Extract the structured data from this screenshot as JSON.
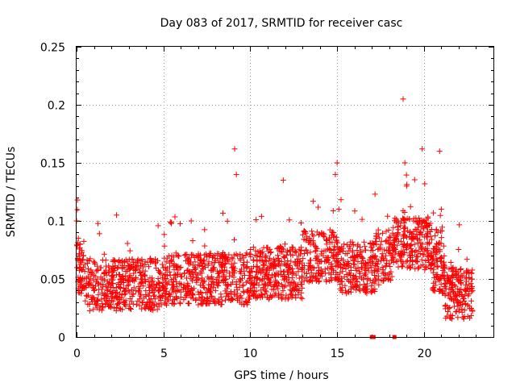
{
  "chart_data": {
    "type": "scatter",
    "title": "Day 083 of 2017, SRMTID for receiver casc",
    "xlabel": "GPS time / hours",
    "ylabel": "SRMTID / TECUs",
    "xlim": [
      0,
      24
    ],
    "ylim": [
      0,
      0.25
    ],
    "xticks": [
      0,
      5,
      10,
      15,
      20
    ],
    "xtick_labels": [
      "0",
      "5",
      "10",
      "15",
      "20"
    ],
    "yticks": [
      0,
      0.05,
      0.1,
      0.15,
      0.2,
      0.25
    ],
    "ytick_labels": [
      "0",
      "0.05",
      "0.1",
      "0.15",
      "0.2",
      "0.25"
    ],
    "grid": true,
    "marker": "+",
    "color": "#ff0000",
    "series": [
      {
        "name": "SRMTID",
        "x": [
          0.0,
          0.05,
          0.1,
          0.15,
          0.2,
          0.3,
          0.45,
          0.6,
          0.75,
          0.9,
          1.0,
          1.2,
          1.4,
          1.6,
          1.8,
          2.0,
          2.2,
          2.3,
          2.4,
          2.6,
          2.8,
          3.0,
          3.2,
          3.4,
          3.6,
          3.8,
          4.0,
          4.2,
          4.4,
          4.6,
          4.8,
          5.0,
          5.2,
          5.4,
          5.6,
          5.8,
          6.0,
          6.2,
          6.4,
          6.6,
          6.8,
          7.0,
          7.2,
          7.4,
          7.6,
          7.8,
          8.0,
          8.2,
          8.4,
          8.6,
          8.8,
          9.0,
          9.1,
          9.2,
          9.4,
          9.6,
          9.8,
          10.0,
          10.2,
          10.4,
          10.6,
          10.8,
          11.0,
          11.2,
          11.4,
          11.6,
          11.8,
          11.9,
          12.0,
          12.2,
          12.4,
          12.6,
          12.8,
          13.0,
          13.2,
          13.4,
          13.6,
          13.8,
          14.0,
          14.2,
          14.4,
          14.6,
          14.8,
          14.9,
          15.0,
          15.1,
          15.2,
          15.4,
          15.6,
          15.8,
          16.0,
          16.2,
          16.4,
          16.6,
          16.8,
          17.0,
          17.2,
          17.4,
          17.6,
          17.8,
          18.0,
          18.2,
          18.4,
          18.6,
          18.7,
          18.8,
          18.9,
          19.0,
          19.2,
          19.4,
          19.6,
          19.8,
          19.9,
          20.0,
          20.2,
          20.4,
          20.6,
          20.8,
          20.9,
          21.0,
          21.2,
          21.4,
          21.6,
          21.8,
          22.0,
          22.2,
          22.4,
          22.6,
          22.8
        ],
        "y": [
          0.1,
          0.118,
          0.085,
          0.06,
          0.045,
          0.04,
          0.05,
          0.035,
          0.045,
          0.055,
          0.04,
          0.05,
          0.045,
          0.055,
          0.04,
          0.05,
          0.065,
          0.105,
          0.06,
          0.05,
          0.04,
          0.045,
          0.035,
          0.05,
          0.04,
          0.03,
          0.035,
          0.04,
          0.03,
          0.045,
          0.035,
          0.04,
          0.045,
          0.035,
          0.05,
          0.04,
          0.06,
          0.055,
          0.045,
          0.1,
          0.06,
          0.05,
          0.055,
          0.06,
          0.045,
          0.05,
          0.04,
          0.055,
          0.06,
          0.05,
          0.055,
          0.06,
          0.162,
          0.14,
          0.05,
          0.045,
          0.06,
          0.04,
          0.035,
          0.05,
          0.055,
          0.045,
          0.05,
          0.06,
          0.045,
          0.055,
          0.065,
          0.135,
          0.08,
          0.06,
          0.055,
          0.065,
          0.07,
          0.06,
          0.075,
          0.085,
          0.06,
          0.05,
          0.065,
          0.07,
          0.08,
          0.075,
          0.09,
          0.14,
          0.15,
          0.11,
          0.075,
          0.08,
          0.065,
          0.06,
          0.07,
          0.065,
          0.06,
          0.055,
          0.05,
          0.065,
          0.05,
          0.045,
          0.06,
          0.07,
          0.08,
          0.075,
          0.065,
          0.07,
          0.1,
          0.205,
          0.15,
          0.13,
          0.09,
          0.1,
          0.085,
          0.09,
          0.162,
          0.1,
          0.08,
          0.07,
          0.075,
          0.09,
          0.16,
          0.11,
          0.06,
          0.05,
          0.045,
          0.035,
          0.03,
          0.035,
          0.04,
          0.045,
          0.04
        ]
      }
    ],
    "special_points": {
      "x": [
        17.0,
        17.1,
        18.3
      ],
      "y": [
        0.0,
        0.0,
        0.0
      ]
    }
  }
}
